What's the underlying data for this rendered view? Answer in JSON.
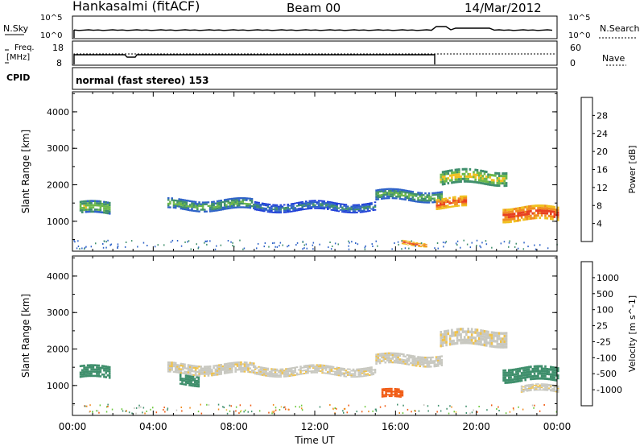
{
  "header": {
    "station": "Hankasalmi (fitACF)",
    "beam": "Beam 00",
    "date": "14/Mar/2012"
  },
  "noise_panel": {
    "left_label": "N.Sky",
    "right_label": "N.Search",
    "left_ticks": [
      "10^5",
      "10^0"
    ],
    "right_ticks": [
      "10^5",
      "10^0"
    ]
  },
  "freq_panel": {
    "left_label_1": "Freq.",
    "left_label_2": "[MHz]",
    "left_ticks": [
      "18",
      "8"
    ],
    "right_label": "Nave",
    "right_ticks": [
      "60",
      "0"
    ]
  },
  "cpid": {
    "label": "CPID",
    "text": "normal (fast stereo) 153"
  },
  "colors": {
    "power": [
      "#1f3fd8",
      "#2f63c8",
      "#3f8f6c",
      "#6cb84a",
      "#f0c020",
      "#f08c20",
      "#e84020",
      "#e00010"
    ],
    "velocity": [
      "#e00010",
      "#f05a12",
      "#f08c20",
      "#f0c24a",
      "#c8c8c0",
      "#6cc83a",
      "#3f8f6c",
      "#2f63c8",
      "#1f3fd8"
    ]
  },
  "chart_data": [
    {
      "type": "heatmap",
      "title": "",
      "ylabel": "Slant Range [km]",
      "xlabel": "Time UT",
      "x_ticks": [
        "00:00",
        "04:00",
        "08:00",
        "12:00",
        "16:00",
        "20:00",
        "00:00"
      ],
      "y_ticks": [
        "1000",
        "2000",
        "3000",
        "4000"
      ],
      "ylim": [
        180,
        4550
      ],
      "xlim_hours": [
        0,
        24
      ],
      "colorbar": {
        "label": "Power [dB]",
        "ticks": [
          "4",
          "8",
          "12",
          "16",
          "20",
          "24",
          "28"
        ],
        "range": [
          0,
          30
        ]
      },
      "bands": [
        {
          "t_start": 0.35,
          "t_end": 1.8,
          "center_km": 1350,
          "width_km": 350,
          "value_db": 16
        },
        {
          "t_start": 4.7,
          "t_end": 9.0,
          "center_km": 1450,
          "width_km": 300,
          "value_db": 14
        },
        {
          "t_start": 9.0,
          "t_end": 15.0,
          "center_km": 1400,
          "width_km": 250,
          "value_db": 10
        },
        {
          "t_start": 15.0,
          "t_end": 18.3,
          "center_km": 1700,
          "width_km": 300,
          "value_db": 14
        },
        {
          "t_start": 18.2,
          "t_end": 21.5,
          "center_km": 2200,
          "width_km": 400,
          "value_db": 18
        },
        {
          "t_start": 21.3,
          "t_end": 24.0,
          "center_km": 1200,
          "width_km": 400,
          "value_db": 27
        },
        {
          "t_start": 18.0,
          "t_end": 19.5,
          "center_km": 1500,
          "width_km": 300,
          "value_db": 26
        },
        {
          "t_start": 16.3,
          "t_end": 17.5,
          "center_km": 400,
          "width_km": 120,
          "value_db": 26
        }
      ]
    },
    {
      "type": "heatmap",
      "title": "",
      "ylabel": "Slant Range [km]",
      "xlabel": "Time UT",
      "x_ticks": [
        "00:00",
        "04:00",
        "08:00",
        "12:00",
        "16:00",
        "20:00",
        "00:00"
      ],
      "y_ticks": [
        "1000",
        "2000",
        "3000",
        "4000"
      ],
      "ylim": [
        180,
        4550
      ],
      "xlim_hours": [
        0,
        24
      ],
      "colorbar": {
        "label": "Velocity [m s^-1]",
        "ticks": [
          "1000",
          "500",
          "100",
          "25",
          "-25",
          "-100",
          "-500",
          "-1000"
        ],
        "range": [
          -1000,
          1000
        ]
      },
      "bands": [
        {
          "t_start": 0.35,
          "t_end": 1.8,
          "center_km": 1350,
          "width_km": 350,
          "value_ms": 150
        },
        {
          "t_start": 4.7,
          "t_end": 9.0,
          "center_km": 1450,
          "width_km": 300,
          "value_ms": 0
        },
        {
          "t_start": 5.3,
          "t_end": 6.2,
          "center_km": 1150,
          "width_km": 300,
          "value_ms": 120
        },
        {
          "t_start": 9.0,
          "t_end": 15.0,
          "center_km": 1400,
          "width_km": 250,
          "value_ms": 0
        },
        {
          "t_start": 15.0,
          "t_end": 18.3,
          "center_km": 1700,
          "width_km": 300,
          "value_ms": 0
        },
        {
          "t_start": 15.3,
          "t_end": 16.3,
          "center_km": 750,
          "width_km": 250,
          "value_ms": -400
        },
        {
          "t_start": 18.2,
          "t_end": 21.5,
          "center_km": 2300,
          "width_km": 450,
          "value_ms": 0
        },
        {
          "t_start": 21.3,
          "t_end": 24.0,
          "center_km": 1300,
          "width_km": 400,
          "value_ms": 200
        },
        {
          "t_start": 22.2,
          "t_end": 24.0,
          "center_km": 900,
          "width_km": 200,
          "value_ms": 0
        }
      ]
    }
  ]
}
